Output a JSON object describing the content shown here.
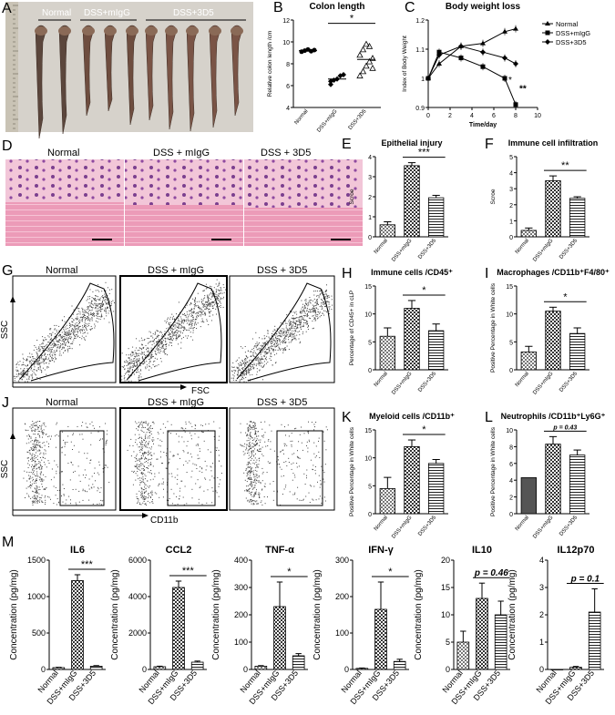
{
  "panels": {
    "A": {
      "letter": "A",
      "labels": [
        "Normal",
        "DSS+mIgG",
        "DSS+3D5"
      ]
    },
    "D": {
      "letter": "D",
      "labels": [
        "Normal",
        "DSS + mIgG",
        "DSS + 3D5"
      ]
    },
    "G": {
      "letter": "G",
      "labels": [
        "Normal",
        "DSS + mIgG",
        "DSS + 3D5"
      ],
      "ylabel": "SSC",
      "xlabel": "FSC"
    },
    "J": {
      "letter": "J",
      "labels": [
        "Normal",
        "DSS + mIgG",
        "DSS + 3D5"
      ],
      "ylabel": "SSC",
      "xlabel": "CD11b"
    },
    "M": {
      "letter": "M"
    }
  },
  "colors": {
    "text": "#000000",
    "bar_dark": "#555555",
    "bar_light": "#cccccc",
    "background": "#ffffff"
  },
  "chart_data": [
    {
      "id": "B",
      "letter": "B",
      "type": "scatter",
      "title": "Colon length",
      "ylabel": "Relative colon length /cm",
      "categories": [
        "Normal",
        "DSS+mIgG",
        "DSS+3D5"
      ],
      "ylim": [
        4,
        12
      ],
      "yticks": [
        4,
        6,
        8,
        10,
        12
      ],
      "series": [
        {
          "values": [
            9.2,
            6.6,
            8.4
          ],
          "points": [
            [
              9.1,
              9.2,
              9.3,
              9.15,
              9.25
            ],
            [
              6.1,
              6.5,
              6.6,
              6.9,
              7.0,
              6.4
            ],
            [
              6.9,
              7.3,
              7.8,
              8.2,
              8.5,
              8.8,
              9.3,
              9.8,
              9.6,
              7.6
            ]
          ]
        }
      ],
      "sig": [
        {
          "from": 1,
          "to": 2,
          "label": "*"
        }
      ]
    },
    {
      "id": "C",
      "letter": "C",
      "type": "line",
      "title": "Body weight loss",
      "xlabel": "Time/day",
      "ylabel": "Index of Body Weight",
      "xlim": [
        0,
        10
      ],
      "xticks": [
        0,
        2,
        4,
        6,
        8,
        10
      ],
      "ylim": [
        0.9,
        1.2
      ],
      "yticks": [
        0.9,
        1.0,
        1.1,
        1.2
      ],
      "x": [
        0,
        1,
        3,
        5,
        7,
        8
      ],
      "series": [
        {
          "name": "Normal",
          "marker": "triangle",
          "values": [
            1.0,
            1.05,
            1.11,
            1.12,
            1.16,
            1.17
          ]
        },
        {
          "name": "DSS+mIgG",
          "marker": "square",
          "values": [
            1.0,
            1.09,
            1.07,
            1.04,
            1.0,
            0.91
          ]
        },
        {
          "name": "DSS+3D5",
          "marker": "diamond",
          "values": [
            1.0,
            1.08,
            1.11,
            1.09,
            1.07,
            1.05
          ]
        }
      ],
      "annotations": [
        "*",
        "**"
      ]
    },
    {
      "id": "E",
      "letter": "E",
      "type": "bar",
      "title": "Epithelial injury",
      "ylabel": "Scroe",
      "categories": [
        "Normal",
        "DSS+mIgG",
        "DSS+3D5"
      ],
      "values": [
        0.6,
        3.55,
        1.95
      ],
      "errors": [
        0.15,
        0.15,
        0.12
      ],
      "ylim": [
        0,
        4
      ],
      "yticks": [
        0,
        1,
        2,
        3,
        4
      ],
      "sig": [
        {
          "from": 1,
          "to": 2,
          "label": "***"
        }
      ]
    },
    {
      "id": "F",
      "letter": "F",
      "type": "bar",
      "title": "Immune cell infiltration",
      "ylabel": "Scroe",
      "categories": [
        "Normal",
        "DSS+mIgG",
        "DSS+3D5"
      ],
      "values": [
        0.4,
        3.5,
        2.4
      ],
      "errors": [
        0.15,
        0.3,
        0.1
      ],
      "ylim": [
        0,
        5
      ],
      "yticks": [
        0,
        1,
        2,
        3,
        4,
        5
      ],
      "sig": [
        {
          "from": 1,
          "to": 2,
          "label": "**"
        }
      ]
    },
    {
      "id": "H",
      "letter": "H",
      "type": "bar",
      "title": "Immune cells /CD45⁺",
      "ylabel": "Percentage of CD45+ in cLP",
      "categories": [
        "Normal",
        "DSS+mIgG",
        "DSS+3D5"
      ],
      "values": [
        6,
        11,
        7
      ],
      "errors": [
        1.5,
        1.4,
        1.2
      ],
      "ylim": [
        0,
        15
      ],
      "yticks": [
        0,
        5,
        10,
        15
      ],
      "sig": [
        {
          "from": 1,
          "to": 2,
          "label": "*"
        }
      ]
    },
    {
      "id": "I",
      "letter": "I",
      "type": "bar",
      "title": "Macrophages /CD11b⁺F4/80⁺",
      "ylabel": "Positive Percentage in White cells",
      "categories": [
        "Normal",
        "DSS+mIgG",
        "DSS+3D5"
      ],
      "values": [
        3.2,
        10.5,
        6.5
      ],
      "errors": [
        1.0,
        0.7,
        1.0
      ],
      "ylim": [
        0,
        15
      ],
      "yticks": [
        0,
        5,
        10,
        15
      ],
      "sig": [
        {
          "from": 1,
          "to": 2,
          "label": "*"
        }
      ]
    },
    {
      "id": "K",
      "letter": "K",
      "type": "bar",
      "title": "Myeloid cells /CD11b⁺",
      "ylabel": "Positive Percentage in White cells",
      "categories": [
        "Normal",
        "DSS+mIgG",
        "DSS+3D5"
      ],
      "values": [
        4.5,
        12,
        9
      ],
      "errors": [
        2,
        1.2,
        0.7
      ],
      "ylim": [
        0,
        15
      ],
      "yticks": [
        0,
        5,
        10,
        15
      ],
      "sig": [
        {
          "from": 1,
          "to": 2,
          "label": "*"
        }
      ]
    },
    {
      "id": "L",
      "letter": "L",
      "type": "bar",
      "title": "Neutrophils /CD11b⁺Ly6G⁺",
      "ylabel": "Positive Percentage in White cells",
      "categories": [
        "Normal",
        "DSS+mIgG",
        "DSS+3D5"
      ],
      "values": [
        4.3,
        8.3,
        7.0
      ],
      "errors": [
        0,
        0.9,
        0.6
      ],
      "ylim": [
        0,
        10
      ],
      "yticks": [
        0,
        2,
        4,
        6,
        8,
        10
      ],
      "sig": [
        {
          "from": 1,
          "to": 2,
          "label": "p = 0.43"
        }
      ]
    },
    {
      "id": "IL6",
      "type": "bar",
      "title": "IL6",
      "ylabel": "Concentration (pg/mg)",
      "categories": [
        "Normal",
        "DSS+mIgG",
        "DSS+3D5"
      ],
      "values": [
        25,
        1220,
        45
      ],
      "errors": [
        5,
        80,
        8
      ],
      "ylim": [
        0,
        1500
      ],
      "yticks": [
        0,
        500,
        1000,
        1500
      ],
      "sig": [
        {
          "from": 1,
          "to": 2,
          "label": "***"
        }
      ]
    },
    {
      "id": "CCL2",
      "type": "bar",
      "title": "CCL2",
      "ylabel": "Concentration (pg/mg)",
      "categories": [
        "Normal",
        "DSS+mIgG",
        "DSS+3D5"
      ],
      "values": [
        150,
        4500,
        400
      ],
      "errors": [
        30,
        350,
        60
      ],
      "ylim": [
        0,
        6000
      ],
      "yticks": [
        0,
        2000,
        4000,
        6000
      ],
      "sig": [
        {
          "from": 1,
          "to": 2,
          "label": "***"
        }
      ]
    },
    {
      "id": "TNF",
      "type": "bar",
      "title": "TNF-α",
      "ylabel": "Concentration (pg/mg)",
      "categories": [
        "Normal",
        "DSS+mIgG",
        "DSS+3D5"
      ],
      "values": [
        12,
        230,
        50
      ],
      "errors": [
        2,
        90,
        8
      ],
      "ylim": [
        0,
        400
      ],
      "yticks": [
        0,
        100,
        200,
        300,
        400
      ],
      "sig": [
        {
          "from": 1,
          "to": 2,
          "label": "*"
        }
      ]
    },
    {
      "id": "IFN",
      "type": "bar",
      "title": "IFN-γ",
      "ylabel": "Concentration (pg/mg)",
      "categories": [
        "Normal",
        "DSS+mIgG",
        "DSS+3D5"
      ],
      "values": [
        3,
        165,
        22
      ],
      "errors": [
        1,
        75,
        6
      ],
      "ylim": [
        0,
        300
      ],
      "yticks": [
        0,
        100,
        200,
        300
      ],
      "sig": [
        {
          "from": 1,
          "to": 2,
          "label": "*"
        }
      ]
    },
    {
      "id": "IL10",
      "type": "bar",
      "title": "IL10",
      "ylabel": "Concentration (pg/mg)",
      "categories": [
        "Normal",
        "DSS+mIgG",
        "DSS+3D5"
      ],
      "values": [
        5,
        13,
        10
      ],
      "errors": [
        2,
        2.8,
        2.5
      ],
      "ylim": [
        0,
        20
      ],
      "yticks": [
        0,
        5,
        10,
        15,
        20
      ],
      "sig": [
        {
          "from": 1,
          "to": 2,
          "label": "p = 0.46"
        }
      ]
    },
    {
      "id": "IL12p70",
      "type": "bar",
      "title": "IL12p70",
      "ylabel": "Concentration (pg/mg)",
      "categories": [
        "Normal",
        "DSS+mIgG",
        "DSS+3D5"
      ],
      "values": [
        0,
        0.08,
        2.1
      ],
      "errors": [
        0,
        0.03,
        0.85
      ],
      "ylim": [
        0,
        4
      ],
      "yticks": [
        0,
        1,
        2,
        3,
        4
      ],
      "sig": [
        {
          "from": 1,
          "to": 2,
          "label": "p = 0.1"
        }
      ]
    }
  ]
}
